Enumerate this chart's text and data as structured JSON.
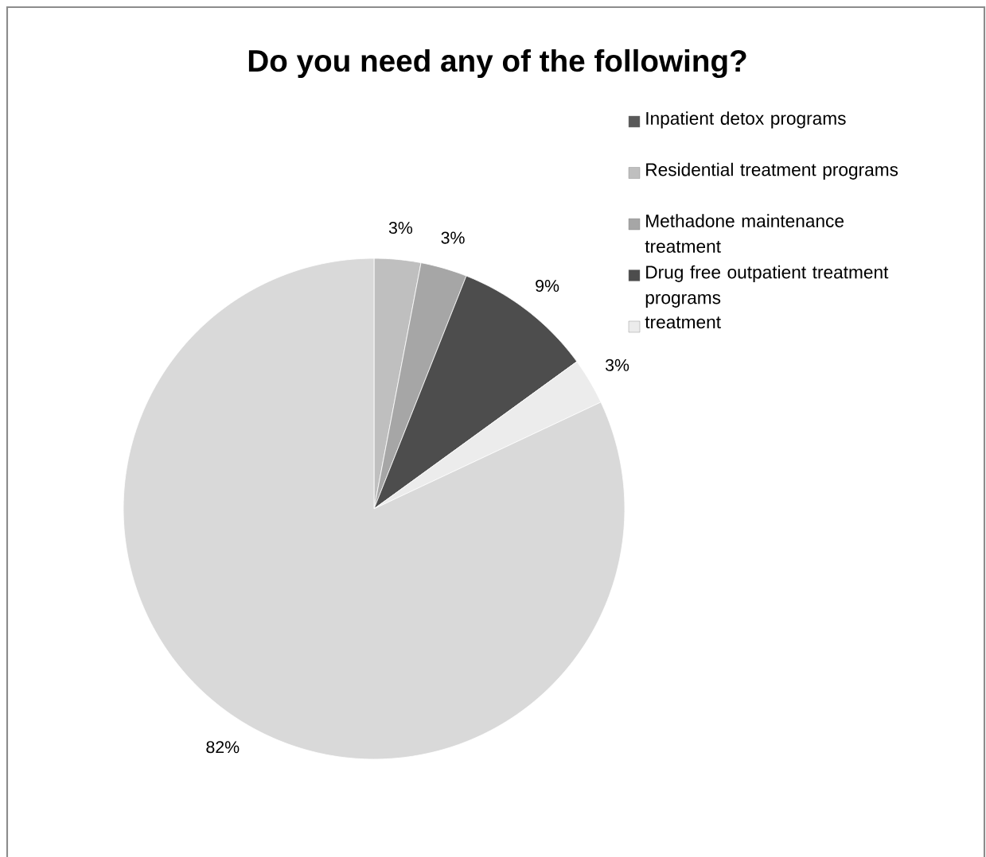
{
  "chart_data": {
    "type": "pie",
    "title": "Do you need any of the following?",
    "categories": [
      "Inpatient detox programs",
      "Residential treatment programs",
      "Methadone maintenance treatment",
      "Drug free outpatient treatment programs",
      "treatment",
      null
    ],
    "values": [
      0,
      3,
      3,
      9,
      3,
      82
    ],
    "colors": [
      "#595959",
      "#bfbfbf",
      "#a6a6a6",
      "#4d4d4d",
      "#ececec",
      "#d9d9d9"
    ],
    "value_labels": [
      null,
      "3%",
      "3%",
      "9%",
      "3%",
      "82%"
    ],
    "legend": "top right"
  }
}
